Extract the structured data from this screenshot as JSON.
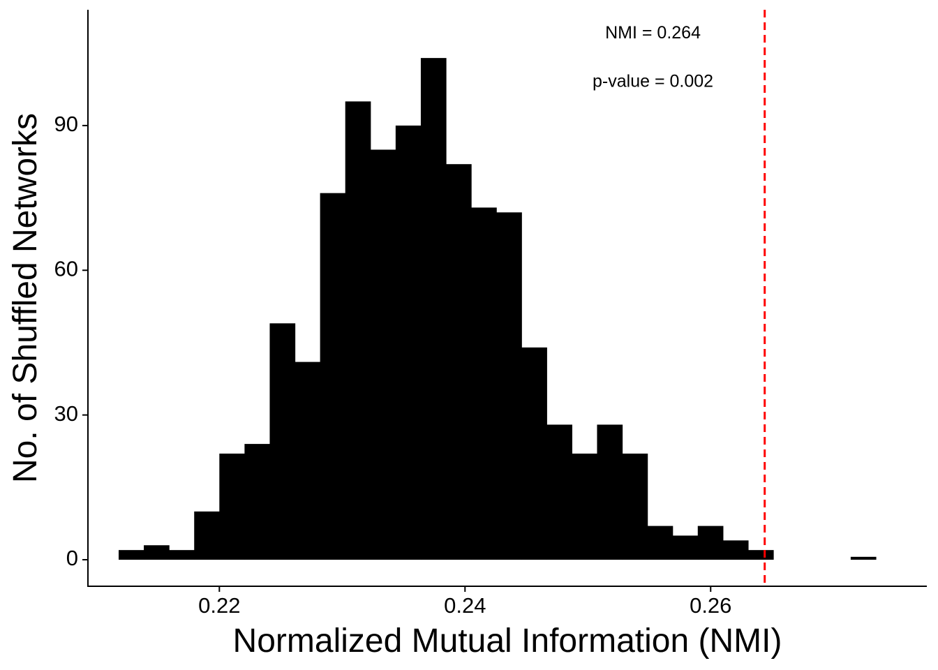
{
  "chart_data": {
    "type": "bar",
    "subtype": "histogram",
    "xlabel": "Normalized Mutual Information (NMI)",
    "ylabel": "No. of Shuffled Networks",
    "x_ticks": [
      0.22,
      0.24,
      0.26
    ],
    "x_tick_labels": [
      "0.22",
      "0.24",
      "0.26"
    ],
    "y_ticks": [
      0,
      30,
      60,
      90
    ],
    "y_tick_labels": [
      "0",
      "30",
      "60",
      "90"
    ],
    "xlim": [
      0.2093,
      0.2776
    ],
    "ylim": [
      -5.5,
      114
    ],
    "bin_width": 0.00205,
    "bins": [
      {
        "x0": 0.2118,
        "count": 2
      },
      {
        "x0": 0.21385,
        "count": 3
      },
      {
        "x0": 0.2159,
        "count": 2
      },
      {
        "x0": 0.21795,
        "count": 10
      },
      {
        "x0": 0.22,
        "count": 22
      },
      {
        "x0": 0.22205,
        "count": 24
      },
      {
        "x0": 0.2241,
        "count": 49
      },
      {
        "x0": 0.22615,
        "count": 41
      },
      {
        "x0": 0.2282,
        "count": 76
      },
      {
        "x0": 0.23025,
        "count": 95
      },
      {
        "x0": 0.2323,
        "count": 85
      },
      {
        "x0": 0.23435,
        "count": 90
      },
      {
        "x0": 0.2364,
        "count": 104
      },
      {
        "x0": 0.23845,
        "count": 82
      },
      {
        "x0": 0.2405,
        "count": 73
      },
      {
        "x0": 0.24255,
        "count": 72
      },
      {
        "x0": 0.2446,
        "count": 44
      },
      {
        "x0": 0.24665,
        "count": 28
      },
      {
        "x0": 0.2487,
        "count": 22
      },
      {
        "x0": 0.25075,
        "count": 28
      },
      {
        "x0": 0.2528,
        "count": 22
      },
      {
        "x0": 0.25485,
        "count": 7
      },
      {
        "x0": 0.2569,
        "count": 5
      },
      {
        "x0": 0.25895,
        "count": 7
      },
      {
        "x0": 0.261,
        "count": 4
      },
      {
        "x0": 0.26305,
        "count": 2
      },
      {
        "x0": 0.2651,
        "count": 0
      },
      {
        "x0": 0.26715,
        "count": 0
      },
      {
        "x0": 0.2692,
        "count": 0
      },
      {
        "x0": 0.27125,
        "count": 0
      },
      {
        "x0": 0.2733,
        "count": 0
      },
      {
        "x0": 0.27535,
        "count": 0
      },
      {
        "x0": 0.2774,
        "count": 0
      },
      {
        "x0": 0.27945,
        "count": 0
      },
      {
        "x0": 0.2815,
        "count": 0
      },
      {
        "x0": 0.27125,
        "count": 0
      },
      {
        "x0": 0.27135,
        "count": 0
      }
    ],
    "outlier_bin": {
      "x0": 0.2714,
      "count": 0.6
    },
    "reference_line": {
      "x": 0.2644,
      "color": "#ff0000",
      "style": "dashed"
    },
    "annotations": [
      {
        "text": "NMI = 0.264",
        "x": 0.2553,
        "y": 109
      },
      {
        "text": "p-value = 0.002",
        "x": 0.2553,
        "y": 99
      }
    ],
    "grid": false,
    "legend": "none",
    "bar_color": "#000000"
  }
}
